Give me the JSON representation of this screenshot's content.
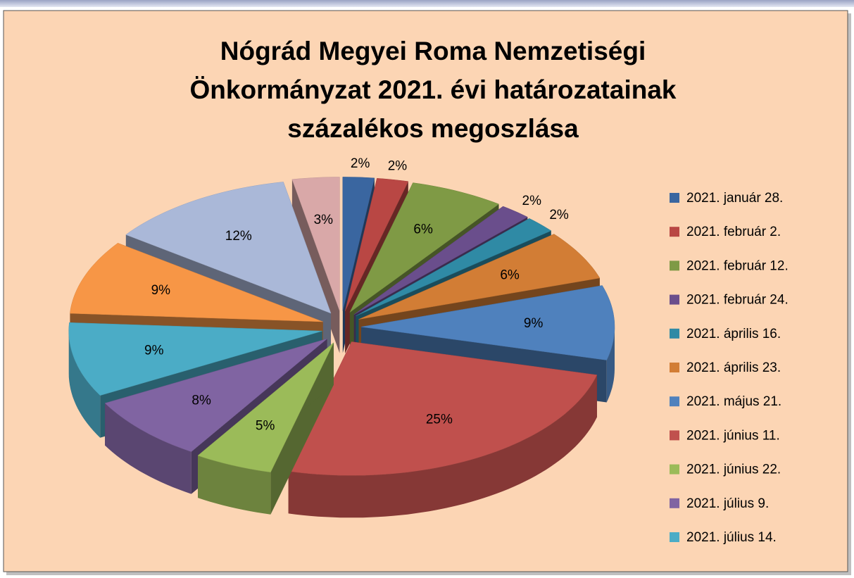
{
  "chart_data": {
    "type": "pie3d",
    "title": "Nógrád Megyei Roma Nemzetiségi\nÖnkormányzat 2021. évi határozatainak\nszázalékos megoszlása",
    "categories": [
      "2021. január 28.",
      "2021. február 2.",
      "2021. február 12.",
      "2021. február 24.",
      "2021. április 16.",
      "2021. április 23.",
      "2021. május 21.",
      "2021. június 11.",
      "2021. június 22.",
      "2021. július 9.",
      "2021. július 14.",
      null,
      null,
      null
    ],
    "values": [
      2,
      2,
      6,
      2,
      2,
      6,
      9,
      25,
      5,
      8,
      9,
      9,
      12,
      3
    ],
    "value_labels": [
      "2%",
      "2%",
      "6%",
      "2%",
      "2%",
      "6%",
      "9%",
      "25%",
      "5%",
      "8%",
      "9%",
      "9%",
      "12%",
      "3%"
    ],
    "colors": [
      "#3a66a0",
      "#b94744",
      "#7f9a45",
      "#6a4e8c",
      "#2f8aa5",
      "#d27d35",
      "#4f81bd",
      "#c0504d",
      "#9bbb59",
      "#8064a2",
      "#4bacc6",
      "#f79646",
      "#aab8d8",
      "#d9a8a8"
    ],
    "legend": "right"
  }
}
